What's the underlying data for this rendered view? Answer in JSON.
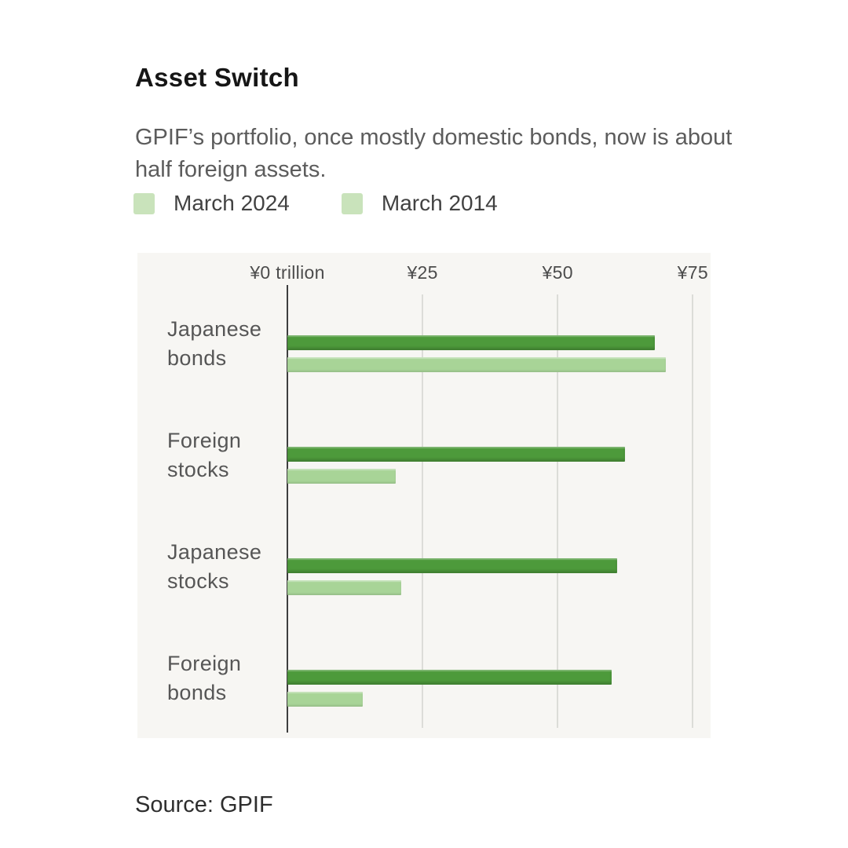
{
  "header": {
    "title": "Asset Switch",
    "subtitle": "GPIF’s portfolio, once mostly domestic bonds, now is about half foreign assets."
  },
  "legend": {
    "items": [
      {
        "label": "March 2024",
        "swatch_color": "#c9e3bb"
      },
      {
        "label": "March 2014",
        "swatch_color": "#c9e3bb"
      }
    ]
  },
  "chart_data": {
    "type": "bar",
    "orientation": "horizontal",
    "title": "Asset Switch",
    "xlabel": "Trillion yen",
    "ylabel": "",
    "categories": [
      "Japanese bonds",
      "Foreign stocks",
      "Japanese stocks",
      "Foreign bonds"
    ],
    "series": [
      {
        "name": "March 2024",
        "color": "#4d9a3b",
        "values": [
          68,
          62.5,
          61,
          60
        ]
      },
      {
        "name": "March 2014",
        "color": "#a8d497",
        "values": [
          70,
          20,
          21,
          14
        ]
      }
    ],
    "x_ticks": [
      {
        "value": 0,
        "label": "¥0 trillion"
      },
      {
        "value": 25,
        "label": "¥25"
      },
      {
        "value": 50,
        "label": "¥50"
      },
      {
        "value": 75,
        "label": "¥75"
      }
    ],
    "xlim": [
      0,
      78.3
    ],
    "grid": true,
    "legend_position": "top",
    "axis_color": "#3e3e3e",
    "gridline_color": "#dcdcd8",
    "panel_background": "#f7f6f3"
  },
  "source": {
    "label": "Source: GPIF"
  }
}
